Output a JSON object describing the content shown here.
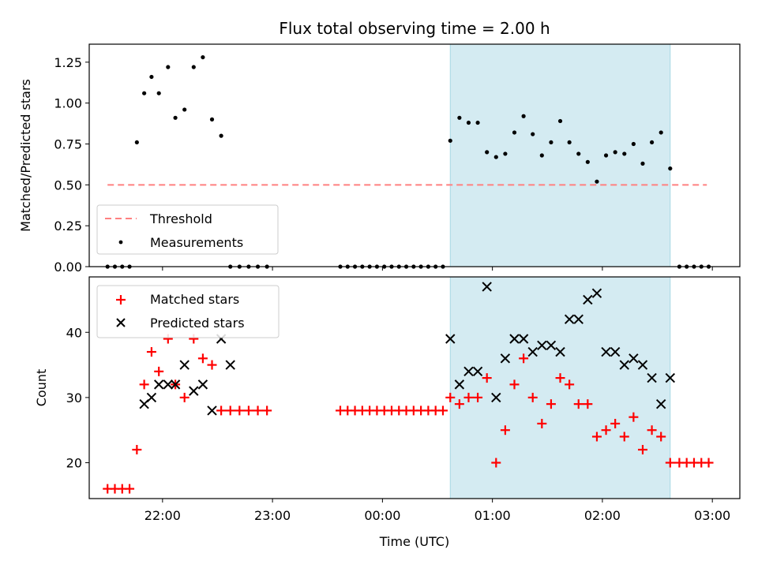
{
  "chart_data": [
    {
      "type": "scatter",
      "title": "Flux total observing time = 2.00 h",
      "ylabel": "Matched/Predicted stars",
      "xlabel": "",
      "x_axis": {
        "type": "time",
        "range": [
          "21:20",
          "03:15"
        ]
      },
      "ylim": [
        0,
        1.36
      ],
      "yticks": [
        0.0,
        0.25,
        0.5,
        0.75,
        1.0,
        1.25
      ],
      "ytick_labels": [
        "0.00",
        "0.25",
        "0.50",
        "0.75",
        "1.00",
        "1.25"
      ],
      "shaded_region": {
        "from": "00:37",
        "to": "02:37",
        "color": "#d4ebf2"
      },
      "legend": {
        "placement": "lower-left",
        "entries": [
          "Threshold",
          "Measurements"
        ]
      },
      "series": [
        {
          "name": "Threshold",
          "kind": "dashed-line",
          "color": "#ff8080",
          "x": [
            "21:30",
            "02:57"
          ],
          "y": [
            0.5,
            0.5
          ]
        },
        {
          "name": "Measurements",
          "kind": "dot",
          "color": "#000000",
          "x": [
            "21:30",
            "21:34",
            "21:38",
            "21:42",
            "21:46",
            "21:50",
            "21:54",
            "21:58",
            "22:03",
            "22:07",
            "22:12",
            "22:17",
            "22:22",
            "22:27",
            "22:32",
            "22:37",
            "22:42",
            "22:47",
            "22:52",
            "22:57",
            "23:37",
            "23:41",
            "23:45",
            "23:49",
            "23:53",
            "23:57",
            "00:01",
            "00:05",
            "00:09",
            "00:13",
            "00:17",
            "00:21",
            "00:25",
            "00:29",
            "00:33",
            "00:37",
            "00:42",
            "00:47",
            "00:52",
            "00:57",
            "01:02",
            "01:07",
            "01:12",
            "01:17",
            "01:22",
            "01:27",
            "01:32",
            "01:37",
            "01:42",
            "01:47",
            "01:52",
            "01:57",
            "02:02",
            "02:07",
            "02:12",
            "02:17",
            "02:22",
            "02:27",
            "02:32",
            "02:37",
            "02:42",
            "02:46",
            "02:50",
            "02:54",
            "02:58"
          ],
          "y": [
            0,
            0,
            0,
            0,
            0.76,
            1.06,
            1.16,
            1.06,
            1.22,
            0.91,
            0.96,
            1.22,
            1.28,
            0.9,
            0.8,
            0,
            0,
            0,
            0,
            0,
            0,
            0,
            0,
            0,
            0,
            0,
            0,
            0,
            0,
            0,
            0,
            0,
            0,
            0,
            0,
            0.77,
            0.91,
            0.88,
            0.88,
            0.7,
            0.67,
            0.69,
            0.82,
            0.92,
            0.81,
            0.68,
            0.76,
            0.89,
            0.76,
            0.69,
            0.64,
            0.52,
            0.68,
            0.7,
            0.69,
            0.75,
            0.63,
            0.76,
            0.82,
            0.6,
            0,
            0,
            0,
            0,
            0
          ]
        }
      ]
    },
    {
      "type": "scatter",
      "title": "",
      "ylabel": "Count",
      "xlabel": "Time (UTC)",
      "x_axis": {
        "type": "time",
        "range": [
          "21:20",
          "03:15"
        ]
      },
      "xticks": [
        "22:00",
        "23:00",
        "00:00",
        "01:00",
        "02:00",
        "03:00"
      ],
      "ylim": [
        14.5,
        48.5
      ],
      "yticks": [
        20,
        30,
        40
      ],
      "shaded_region": {
        "from": "00:37",
        "to": "02:37",
        "color": "#d4ebf2"
      },
      "legend": {
        "placement": "upper-left",
        "entries": [
          "Matched stars",
          "Predicted stars"
        ]
      },
      "series": [
        {
          "name": "Matched stars",
          "marker": "+",
          "color": "#ff0000",
          "x": [
            "21:30",
            "21:34",
            "21:38",
            "21:42",
            "21:46",
            "21:50",
            "21:54",
            "21:58",
            "22:03",
            "22:07",
            "22:12",
            "22:17",
            "22:22",
            "22:27",
            "22:32",
            "22:37",
            "22:42",
            "22:47",
            "22:52",
            "22:57",
            "23:37",
            "23:41",
            "23:45",
            "23:49",
            "23:53",
            "23:57",
            "00:01",
            "00:05",
            "00:09",
            "00:13",
            "00:17",
            "00:21",
            "00:25",
            "00:29",
            "00:33",
            "00:37",
            "00:42",
            "00:47",
            "00:52",
            "00:57",
            "01:02",
            "01:07",
            "01:12",
            "01:17",
            "01:22",
            "01:27",
            "01:32",
            "01:37",
            "01:42",
            "01:47",
            "01:52",
            "01:57",
            "02:02",
            "02:07",
            "02:12",
            "02:17",
            "02:22",
            "02:27",
            "02:32",
            "02:37",
            "02:42",
            "02:46",
            "02:50",
            "02:54",
            "02:58"
          ],
          "y": [
            16,
            16,
            16,
            16,
            22,
            32,
            37,
            34,
            39,
            32,
            30,
            39,
            36,
            35,
            28,
            28,
            28,
            28,
            28,
            28,
            28,
            28,
            28,
            28,
            28,
            28,
            28,
            28,
            28,
            28,
            28,
            28,
            28,
            28,
            28,
            30,
            29,
            30,
            30,
            33,
            20,
            25,
            32,
            36,
            30,
            26,
            29,
            33,
            32,
            29,
            29,
            24,
            25,
            26,
            24,
            27,
            22,
            25,
            24,
            20,
            20,
            20,
            20,
            20,
            20
          ]
        },
        {
          "name": "Predicted stars",
          "marker": "x",
          "color": "#000000",
          "x": [
            "21:50",
            "21:54",
            "21:58",
            "22:03",
            "22:07",
            "22:12",
            "22:17",
            "22:22",
            "22:27",
            "22:32",
            "22:37",
            "00:37",
            "00:42",
            "00:47",
            "00:52",
            "00:57",
            "01:02",
            "01:07",
            "01:12",
            "01:17",
            "01:22",
            "01:27",
            "01:32",
            "01:37",
            "01:42",
            "01:47",
            "01:52",
            "01:57",
            "02:02",
            "02:07",
            "02:12",
            "02:17",
            "02:22",
            "02:27",
            "02:32",
            "02:37"
          ],
          "y": [
            29,
            30,
            32,
            32,
            32,
            35,
            31,
            32,
            28,
            39,
            35,
            39,
            32,
            34,
            34,
            47,
            30,
            36,
            39,
            39,
            37,
            38,
            38,
            37,
            42,
            42,
            45,
            46,
            37,
            37,
            35,
            36,
            35,
            33,
            29,
            33
          ]
        }
      ]
    }
  ]
}
